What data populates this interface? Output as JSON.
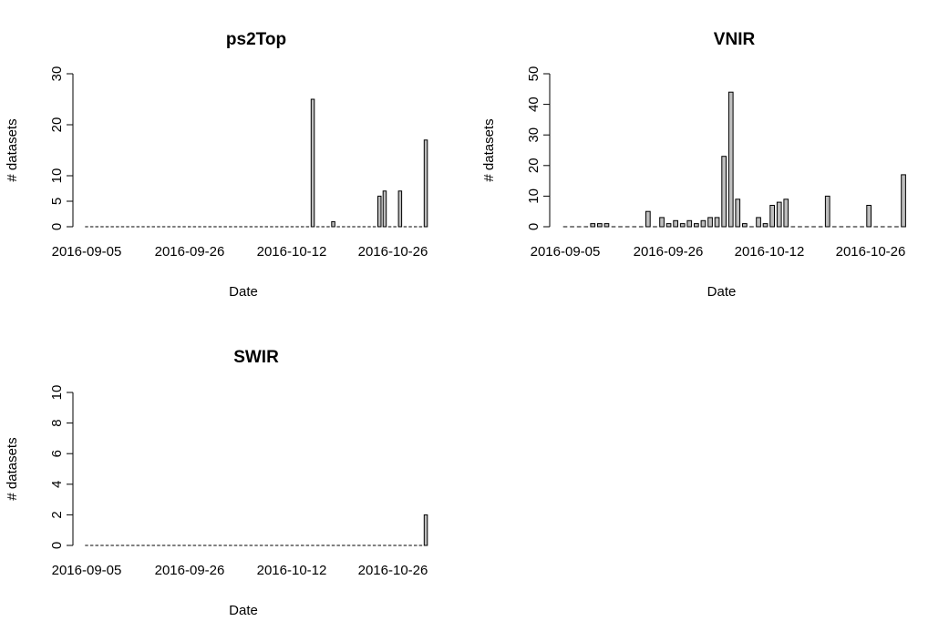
{
  "chart_data": [
    {
      "type": "bar",
      "title": "ps2Top",
      "xlabel": "Date",
      "ylabel": "# datasets",
      "ylim": [
        0,
        30
      ],
      "yticks": [
        0,
        5,
        10,
        20,
        30
      ],
      "x_tick_labels": [
        "2016-09-05",
        "2016-09-26",
        "2016-10-12",
        "2016-10-26"
      ],
      "x_tick_indices": [
        0,
        10,
        20,
        30
      ],
      "values": [
        0,
        0,
        0,
        0,
        0,
        0,
        0,
        0,
        0,
        0,
        0,
        0,
        0,
        0,
        0,
        0,
        0,
        0,
        0,
        0,
        0,
        0,
        0,
        0,
        0,
        0,
        0,
        0,
        0,
        0,
        0,
        0,
        0,
        0,
        0,
        0,
        0,
        0,
        0,
        0,
        0,
        0,
        0,
        0,
        25,
        0,
        0,
        0,
        1,
        0,
        0,
        0,
        0,
        0,
        0,
        0,
        0,
        6,
        7,
        0,
        0,
        7,
        0,
        0,
        0,
        0,
        17
      ]
    },
    {
      "type": "bar",
      "title": "VNIR",
      "xlabel": "Date",
      "ylabel": "# datasets",
      "ylim": [
        0,
        50
      ],
      "yticks": [
        0,
        10,
        20,
        30,
        40,
        50
      ],
      "x_tick_labels": [
        "2016-09-05",
        "2016-09-26",
        "2016-10-12",
        "2016-10-26"
      ],
      "x_tick_indices": [
        0,
        10,
        20,
        30
      ],
      "values": [
        0,
        0,
        0,
        0,
        1,
        1,
        1,
        0,
        0,
        0,
        0,
        0,
        5,
        0,
        3,
        1,
        2,
        1,
        2,
        1,
        2,
        3,
        3,
        23,
        44,
        9,
        1,
        0,
        3,
        1,
        7,
        8,
        9,
        0,
        0,
        0,
        0,
        0,
        10,
        0,
        0,
        0,
        0,
        0,
        7,
        0,
        0,
        0,
        0,
        17
      ]
    },
    {
      "type": "bar",
      "title": "SWIR",
      "xlabel": "Date",
      "ylabel": "# datasets",
      "ylim": [
        0,
        10
      ],
      "yticks": [
        0,
        2,
        4,
        6,
        8,
        10
      ],
      "x_tick_labels": [
        "2016-09-05",
        "2016-09-26",
        "2016-10-12",
        "2016-10-26"
      ],
      "x_tick_indices": [
        0,
        10,
        20,
        30
      ],
      "values": [
        0,
        0,
        0,
        0,
        0,
        0,
        0,
        0,
        0,
        0,
        0,
        0,
        0,
        0,
        0,
        0,
        0,
        0,
        0,
        0,
        0,
        0,
        0,
        0,
        0,
        0,
        0,
        0,
        0,
        0,
        0,
        0,
        0,
        0,
        0,
        0,
        0,
        0,
        0,
        0,
        0,
        0,
        0,
        0,
        0,
        0,
        0,
        0,
        0,
        0,
        0,
        0,
        0,
        0,
        0,
        0,
        0,
        0,
        0,
        0,
        0,
        0,
        0,
        0,
        0,
        0,
        2
      ]
    }
  ],
  "colors": {
    "bar_fill": "#bebebe",
    "bar_stroke": "#000000"
  }
}
